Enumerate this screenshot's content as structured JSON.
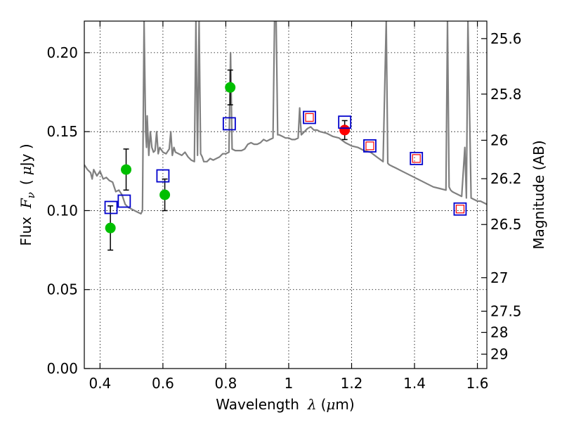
{
  "chart_data": {
    "type": "scatter",
    "xlabel_prefix": "Wavelength",
    "xlabel_symbol": "λ",
    "xlabel_unit_open": "(",
    "xlabel_unit_mu": "μ",
    "xlabel_unit_close": "m)",
    "ylabel_prefix": "Flux",
    "ylabel_symbol": "F",
    "ylabel_sub": "ν",
    "ylabel_unit_open": "(",
    "ylabel_unit_mu": "μ",
    "ylabel_unit_close": "Jy )",
    "y2label": "Magnitude (AB)",
    "xlim": [
      0.35,
      1.63
    ],
    "ylim": [
      0.0,
      0.22
    ],
    "xticks": [
      {
        "value": 0.4,
        "label": "0.4"
      },
      {
        "value": 0.6,
        "label": "0.6"
      },
      {
        "value": 0.8,
        "label": "0.8"
      },
      {
        "value": 1.0,
        "label": "1"
      },
      {
        "value": 1.2,
        "label": "1.2"
      },
      {
        "value": 1.4,
        "label": "1.4"
      },
      {
        "value": 1.6,
        "label": "1.6"
      }
    ],
    "yticks": [
      {
        "value": 0.0,
        "label": "0.00"
      },
      {
        "value": 0.05,
        "label": "0.05"
      },
      {
        "value": 0.1,
        "label": "0.10"
      },
      {
        "value": 0.15,
        "label": "0.15"
      },
      {
        "value": 0.2,
        "label": "0.20"
      }
    ],
    "y2ticks": [
      {
        "label": "25.6",
        "mag": 25.6
      },
      {
        "label": "25.8",
        "mag": 25.8
      },
      {
        "label": "26",
        "mag": 26.0
      },
      {
        "label": "26.2",
        "mag": 26.2
      },
      {
        "label": "26.5",
        "mag": 26.5
      },
      {
        "label": "27",
        "mag": 27.0
      },
      {
        "label": "27.5",
        "mag": 27.5
      },
      {
        "label": "28",
        "mag": 28.0
      },
      {
        "label": "29",
        "mag": 29.0
      }
    ],
    "series": [
      {
        "name": "model-spectrum",
        "kind": "line",
        "color": "#808080",
        "x": [
          0.35,
          0.36,
          0.37,
          0.375,
          0.38,
          0.39,
          0.4,
          0.41,
          0.42,
          0.43,
          0.44,
          0.45,
          0.46,
          0.47,
          0.48,
          0.49,
          0.5,
          0.51,
          0.52,
          0.53,
          0.535,
          0.54,
          0.545,
          0.548,
          0.55,
          0.555,
          0.56,
          0.565,
          0.57,
          0.575,
          0.58,
          0.585,
          0.59,
          0.6,
          0.61,
          0.62,
          0.625,
          0.63,
          0.635,
          0.64,
          0.65,
          0.66,
          0.67,
          0.68,
          0.69,
          0.7,
          0.705,
          0.71,
          0.715,
          0.72,
          0.725,
          0.73,
          0.74,
          0.75,
          0.76,
          0.77,
          0.78,
          0.79,
          0.8,
          0.81,
          0.815,
          0.82,
          0.83,
          0.84,
          0.85,
          0.86,
          0.87,
          0.88,
          0.89,
          0.9,
          0.91,
          0.92,
          0.93,
          0.94,
          0.95,
          0.955,
          0.96,
          0.965,
          0.97,
          0.98,
          0.99,
          1.0,
          1.01,
          1.02,
          1.03,
          1.035,
          1.04,
          1.05,
          1.06,
          1.07,
          1.08,
          1.09,
          1.1,
          1.12,
          1.14,
          1.16,
          1.18,
          1.2,
          1.22,
          1.24,
          1.26,
          1.28,
          1.3,
          1.31,
          1.315,
          1.32,
          1.33,
          1.34,
          1.36,
          1.38,
          1.4,
          1.42,
          1.44,
          1.46,
          1.48,
          1.5,
          1.505,
          1.51,
          1.515,
          1.52,
          1.53,
          1.54,
          1.55,
          1.56,
          1.565,
          1.57,
          1.58,
          1.59,
          1.6,
          1.61,
          1.62,
          1.63
        ],
        "y": [
          0.129,
          0.126,
          0.124,
          0.12,
          0.126,
          0.122,
          0.125,
          0.12,
          0.121,
          0.119,
          0.118,
          0.112,
          0.113,
          0.11,
          0.104,
          0.102,
          0.101,
          0.1,
          0.099,
          0.098,
          0.1,
          0.22,
          0.15,
          0.14,
          0.16,
          0.135,
          0.15,
          0.14,
          0.137,
          0.138,
          0.15,
          0.136,
          0.14,
          0.137,
          0.136,
          0.139,
          0.15,
          0.135,
          0.14,
          0.137,
          0.136,
          0.135,
          0.137,
          0.134,
          0.132,
          0.131,
          0.22,
          0.135,
          0.22,
          0.136,
          0.134,
          0.131,
          0.131,
          0.133,
          0.132,
          0.133,
          0.134,
          0.136,
          0.136,
          0.137,
          0.2,
          0.139,
          0.138,
          0.138,
          0.138,
          0.139,
          0.142,
          0.143,
          0.142,
          0.142,
          0.143,
          0.145,
          0.144,
          0.145,
          0.146,
          0.22,
          0.22,
          0.148,
          0.148,
          0.147,
          0.146,
          0.146,
          0.145,
          0.145,
          0.146,
          0.165,
          0.148,
          0.15,
          0.152,
          0.153,
          0.151,
          0.151,
          0.15,
          0.149,
          0.147,
          0.146,
          0.143,
          0.141,
          0.14,
          0.138,
          0.137,
          0.134,
          0.131,
          0.22,
          0.13,
          0.129,
          0.128,
          0.127,
          0.125,
          0.123,
          0.121,
          0.119,
          0.117,
          0.115,
          0.114,
          0.113,
          0.22,
          0.115,
          0.113,
          0.112,
          0.111,
          0.11,
          0.109,
          0.14,
          0.108,
          0.22,
          0.108,
          0.107,
          0.106,
          0.106,
          0.105,
          0.104
        ]
      },
      {
        "name": "observed-green",
        "kind": "points",
        "color": "#00bf00",
        "points": [
          {
            "x": 0.433,
            "y": 0.089,
            "err": 0.014
          },
          {
            "x": 0.483,
            "y": 0.126,
            "err": 0.013
          },
          {
            "x": 0.606,
            "y": 0.11,
            "err": 0.01
          },
          {
            "x": 0.814,
            "y": 0.178,
            "err": 0.011
          }
        ]
      },
      {
        "name": "observed-red",
        "kind": "points",
        "color": "#ff0000",
        "points": [
          {
            "x": 1.178,
            "y": 0.151,
            "err": 0.006
          }
        ]
      },
      {
        "name": "synthetic-blue",
        "kind": "squares",
        "color": "#0000cc",
        "points": [
          {
            "x": 0.435,
            "y": 0.102
          },
          {
            "x": 0.477,
            "y": 0.106
          },
          {
            "x": 0.6,
            "y": 0.122
          },
          {
            "x": 0.811,
            "y": 0.155
          },
          {
            "x": 1.066,
            "y": 0.159
          },
          {
            "x": 1.178,
            "y": 0.156
          },
          {
            "x": 1.258,
            "y": 0.141
          },
          {
            "x": 1.406,
            "y": 0.133
          },
          {
            "x": 1.545,
            "y": 0.101
          }
        ]
      },
      {
        "name": "synthetic-red-small",
        "kind": "squares-small",
        "color": "#ff0000",
        "points": [
          {
            "x": 1.066,
            "y": 0.159
          },
          {
            "x": 1.258,
            "y": 0.141
          },
          {
            "x": 1.406,
            "y": 0.133
          },
          {
            "x": 1.545,
            "y": 0.101
          }
        ]
      }
    ]
  }
}
